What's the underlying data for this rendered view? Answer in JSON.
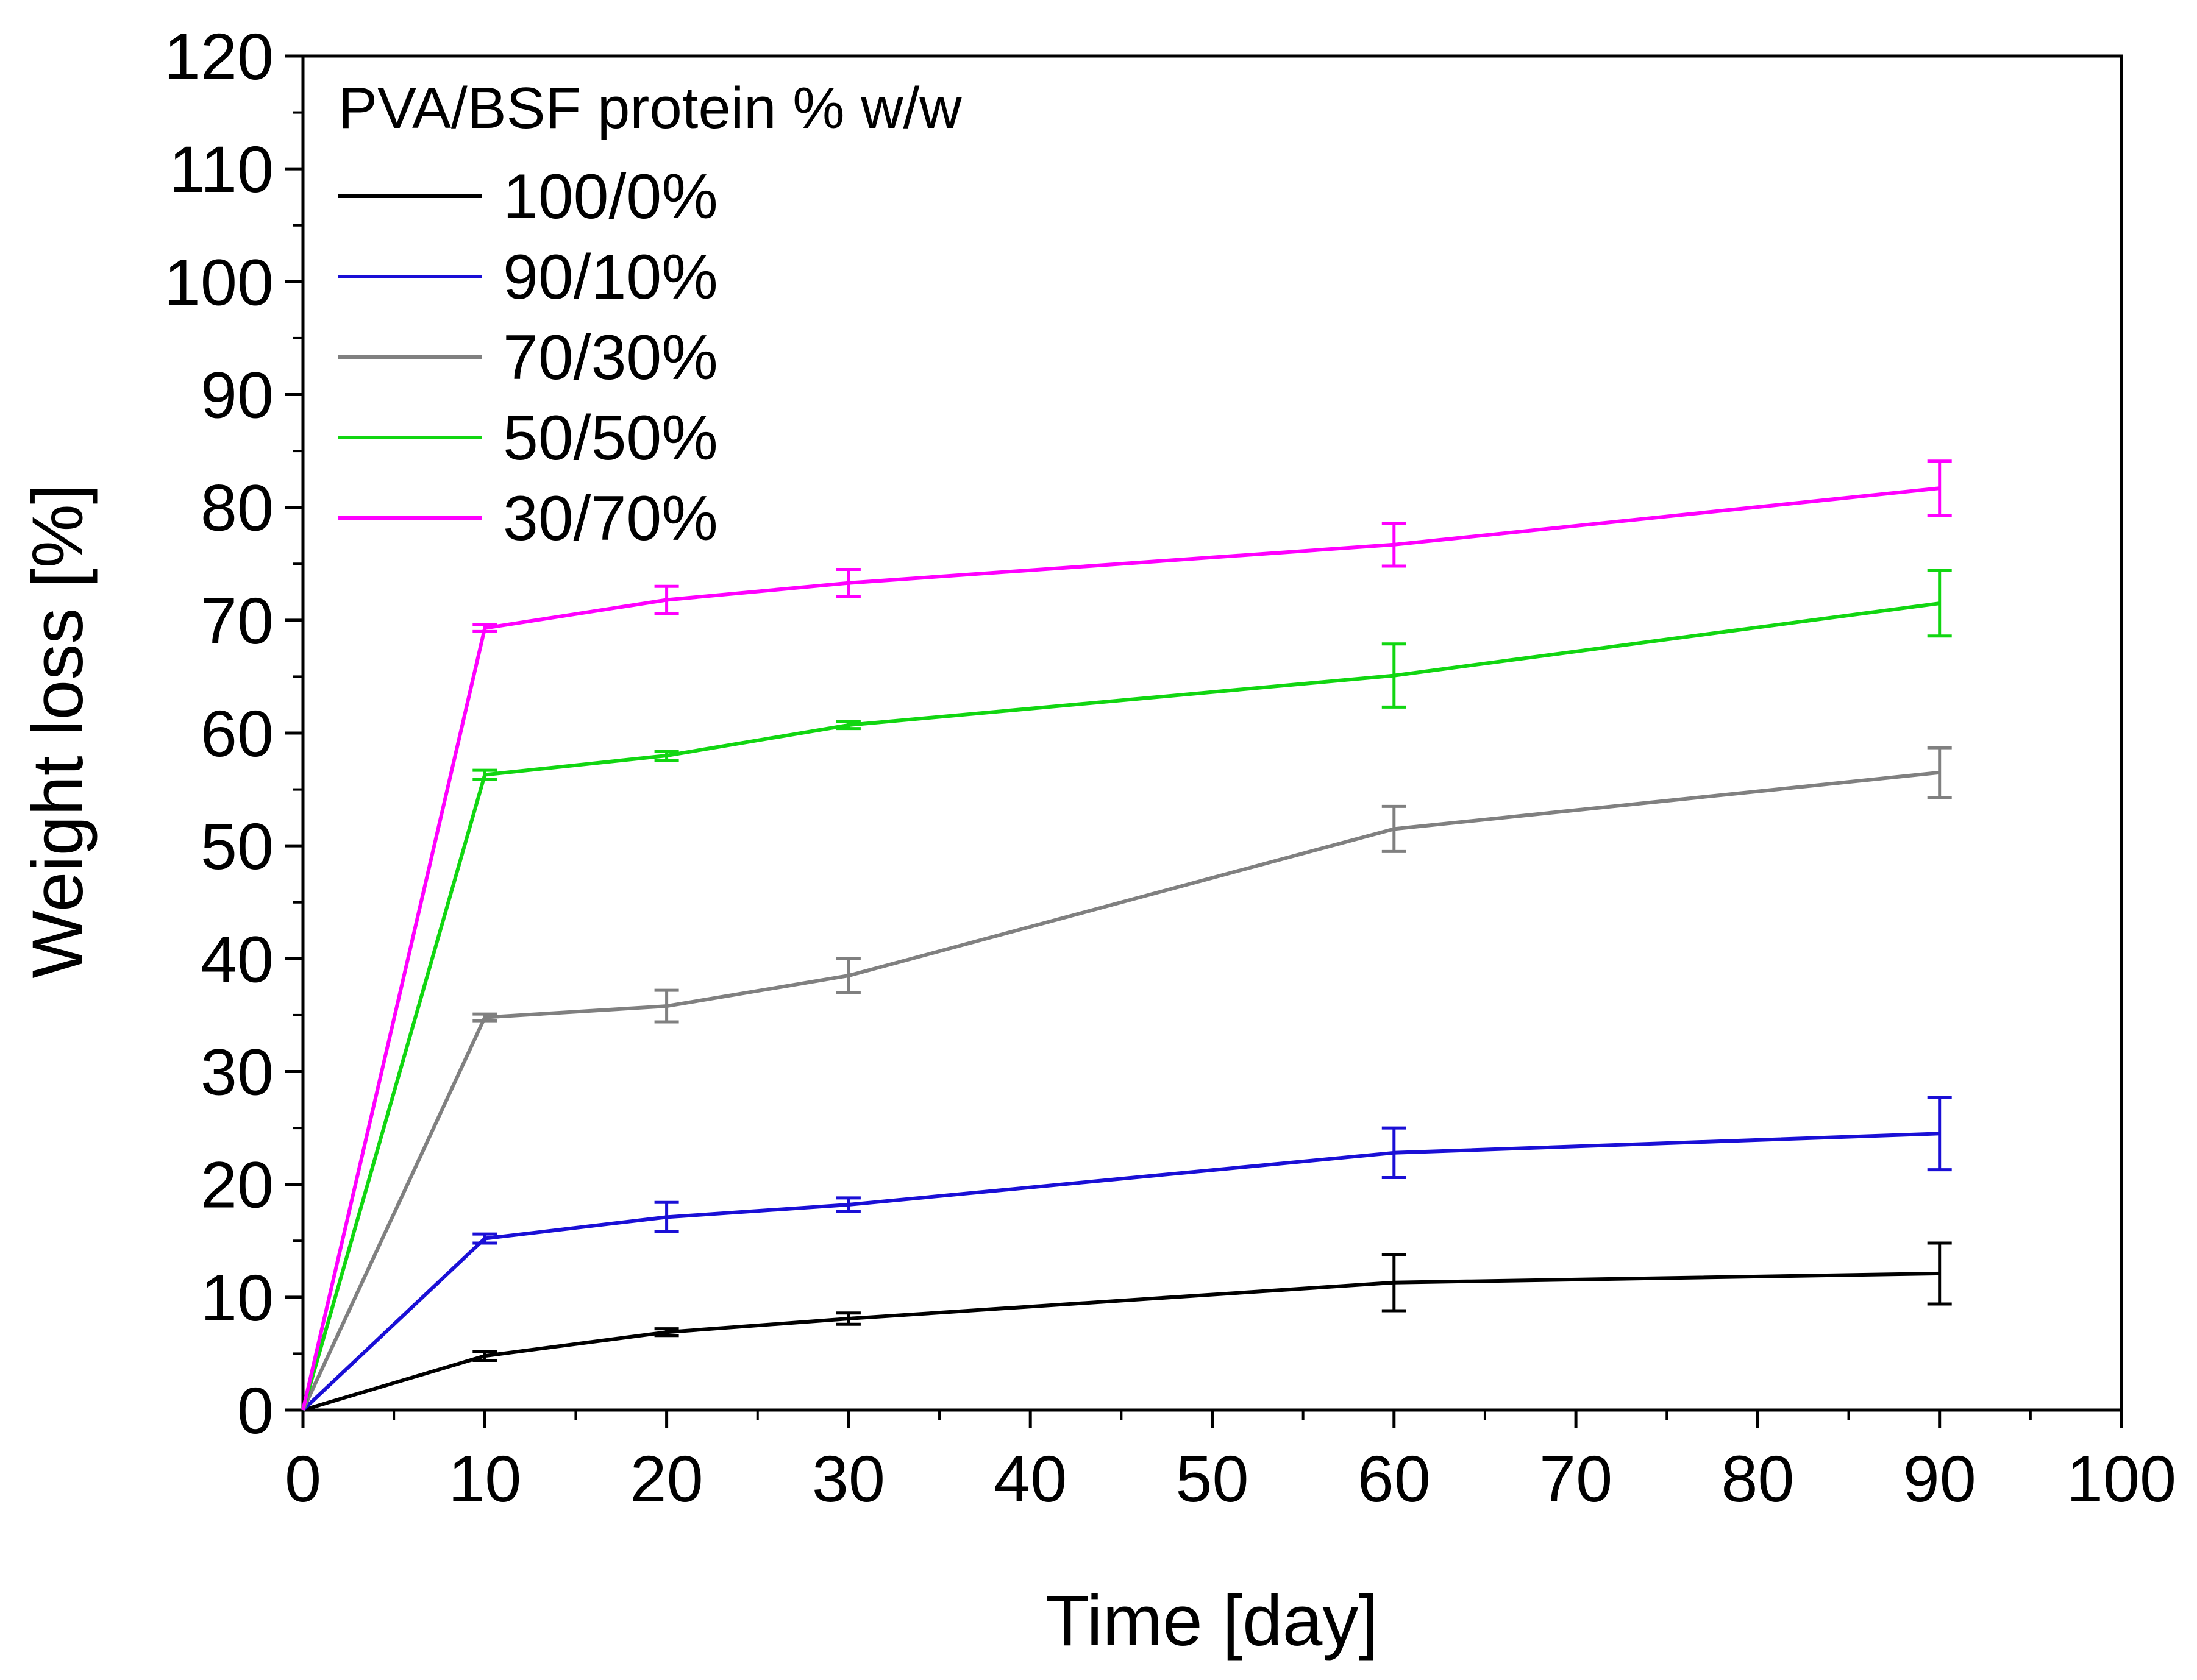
{
  "chart_data": {
    "type": "line",
    "title": "",
    "xlabel": "Time [day]",
    "ylabel": "Weight loss [%]",
    "xlim": [
      0,
      100
    ],
    "ylim": [
      0,
      120
    ],
    "x_ticks": [
      0,
      10,
      20,
      30,
      40,
      50,
      60,
      70,
      80,
      90,
      100
    ],
    "y_ticks": [
      0,
      10,
      20,
      30,
      40,
      50,
      60,
      70,
      80,
      90,
      100,
      110,
      120
    ],
    "grid": false,
    "legend_position": "top-left",
    "legend_title": "PVA/BSF protein % w/w",
    "x": [
      0,
      10,
      20,
      30,
      60,
      90
    ],
    "series": [
      {
        "name": "100/0%",
        "color": "#000000",
        "values": [
          0,
          4.8,
          6.9,
          8.1,
          11.3,
          12.1
        ],
        "errors": [
          0,
          0.4,
          0.3,
          0.5,
          2.5,
          2.7
        ]
      },
      {
        "name": "90/10%",
        "color": "#1a0fd6",
        "values": [
          0,
          15.2,
          17.1,
          18.2,
          22.8,
          24.5
        ],
        "errors": [
          0,
          0.4,
          1.3,
          0.6,
          2.2,
          3.2
        ]
      },
      {
        "name": "70/30%",
        "color": "#808080",
        "values": [
          0,
          34.8,
          35.8,
          38.5,
          51.5,
          56.5
        ],
        "errors": [
          0,
          0.3,
          1.4,
          1.5,
          2.0,
          2.2
        ]
      },
      {
        "name": "50/50%",
        "color": "#11d611",
        "values": [
          0,
          56.3,
          58.0,
          60.7,
          65.1,
          71.5
        ],
        "errors": [
          0,
          0.4,
          0.4,
          0.3,
          2.8,
          2.9
        ]
      },
      {
        "name": "30/70%",
        "color": "#ff00ff",
        "values": [
          0,
          69.3,
          71.8,
          73.3,
          76.7,
          81.7
        ],
        "errors": [
          0,
          0.3,
          1.2,
          1.2,
          1.9,
          2.4
        ]
      }
    ]
  }
}
